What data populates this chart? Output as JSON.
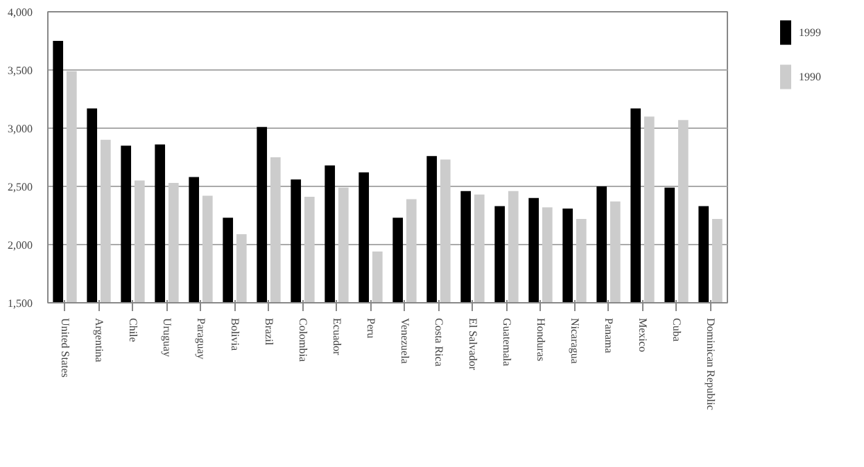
{
  "chart_data": {
    "type": "bar",
    "categories": [
      "United States",
      "Argentina",
      "Chile",
      "Uruguay",
      "Paraguay",
      "Bolivia",
      "Brazil",
      "Colombia",
      "Ecuador",
      "Peru",
      "Venezuela",
      "Costa Rica",
      "El Salvador",
      "Guatemala",
      "Honduras",
      "Nicaragua",
      "Panama",
      "Mexico",
      "Cuba",
      "Dominican Republic"
    ],
    "series": [
      {
        "name": "1999",
        "color": "#000000",
        "values": [
          3750,
          3170,
          2850,
          2860,
          2580,
          2230,
          3010,
          2560,
          2680,
          2620,
          2230,
          2760,
          2460,
          2330,
          2400,
          2310,
          2500,
          3170,
          2490,
          2330
        ]
      },
      {
        "name": "1990",
        "color": "#cccccc",
        "values": [
          3490,
          2900,
          2550,
          2530,
          2420,
          2090,
          2750,
          2410,
          2490,
          1940,
          2390,
          2730,
          2430,
          2460,
          2320,
          2220,
          2370,
          3100,
          3070,
          2220
        ]
      }
    ],
    "ylim": [
      1500,
      4000
    ],
    "yticks": [
      {
        "value": 1500,
        "label": "1,500"
      },
      {
        "value": 2000,
        "label": "2,000"
      },
      {
        "value": 2500,
        "label": "2,500"
      },
      {
        "value": 3000,
        "label": "3,000"
      },
      {
        "value": 3500,
        "label": "3,500"
      },
      {
        "value": 4000,
        "label": "4,000"
      }
    ],
    "grid": "y",
    "legend": "right"
  }
}
